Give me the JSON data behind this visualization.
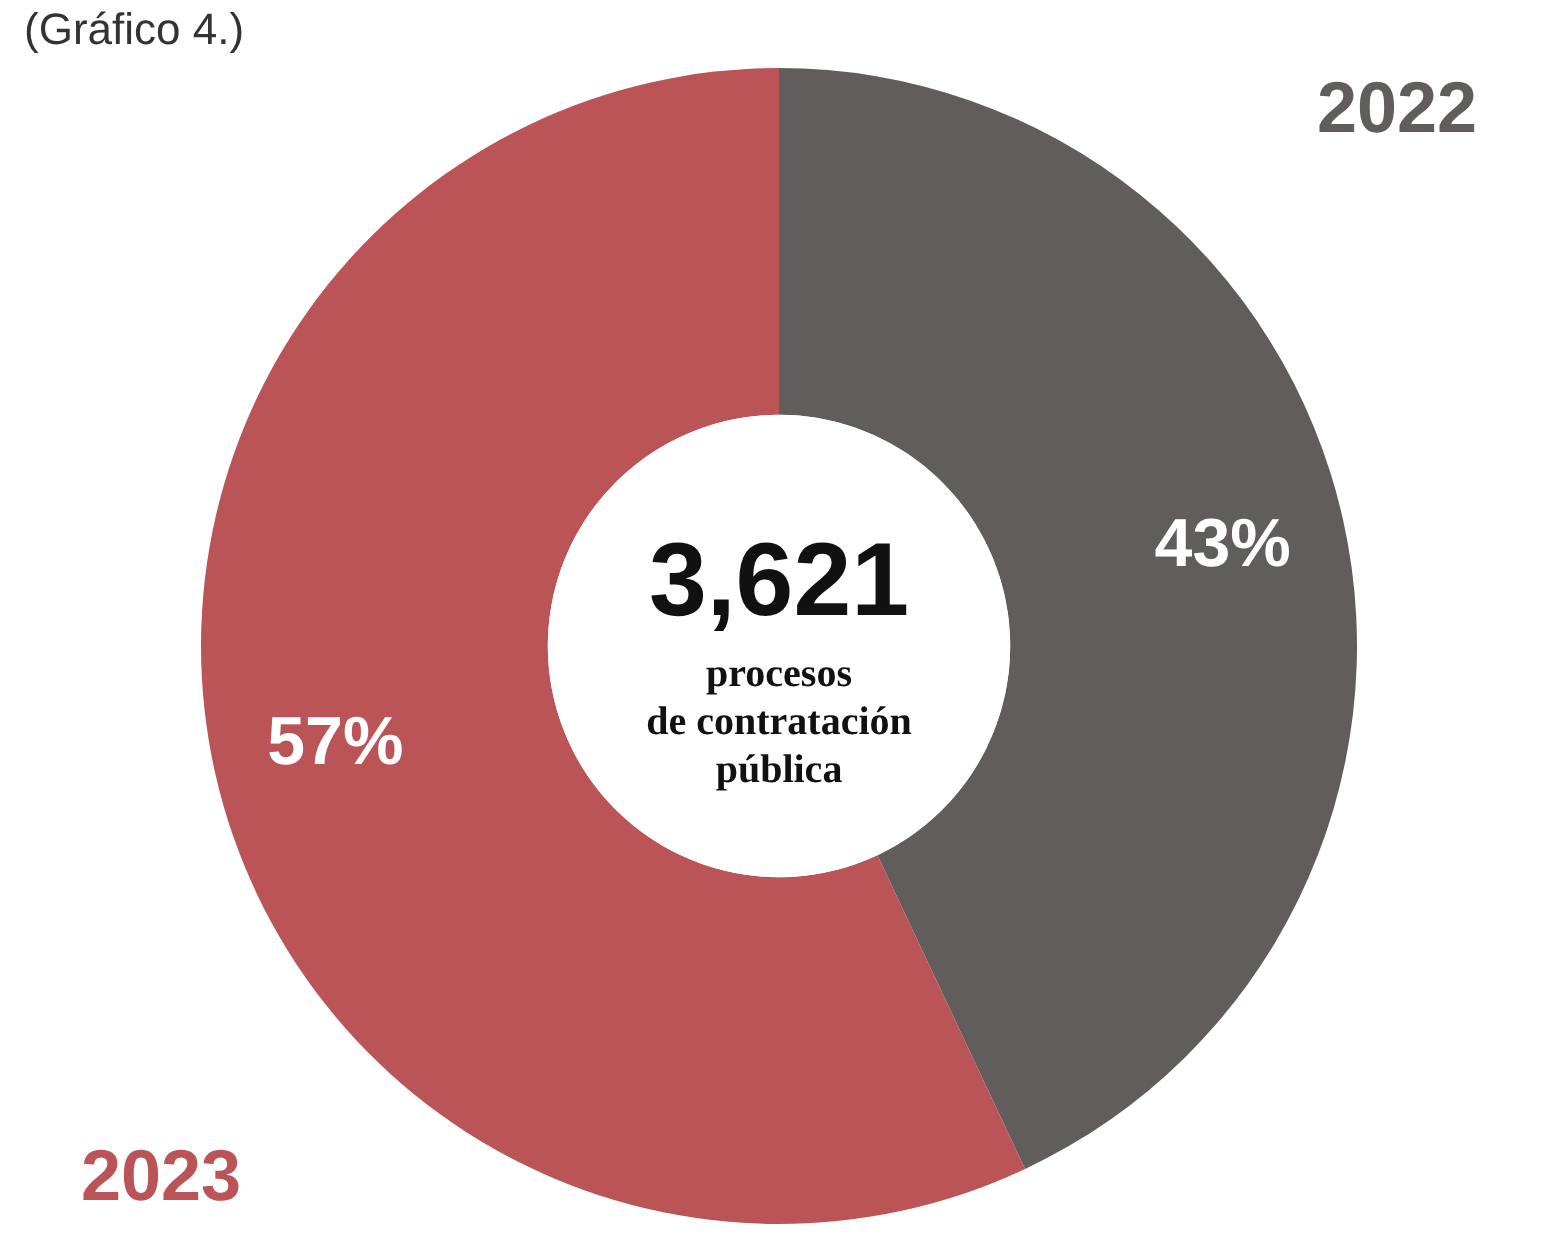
{
  "chart_data": {
    "type": "donut",
    "categories": [
      "2022",
      "2023"
    ],
    "values": [
      43,
      57
    ],
    "colors": [
      "#615d5c",
      "#bb5457"
    ],
    "value_labels": [
      "43%",
      "57%"
    ],
    "legend": false,
    "annotations": [
      "(Gráfico 4.)",
      "3,621",
      "procesos\nde contratación\npública"
    ]
  }
}
